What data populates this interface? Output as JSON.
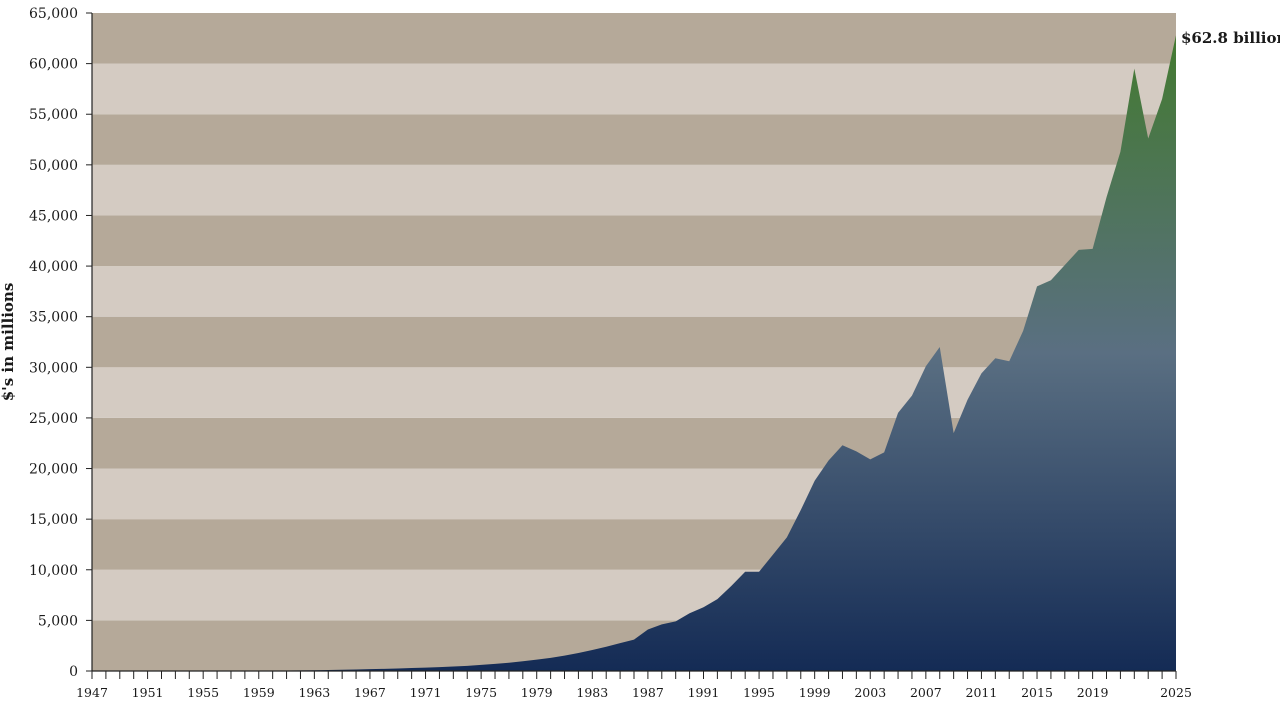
{
  "chart_data": {
    "type": "area",
    "title": "",
    "xlabel": "",
    "ylabel": "$'s in millions",
    "xlim": [
      1947,
      2025
    ],
    "ylim": [
      0,
      65000
    ],
    "y_tick_step": 5000,
    "x_tick_labels": [
      "1947",
      "1951",
      "1955",
      "1959",
      "1963",
      "1967",
      "1971",
      "1975",
      "1979",
      "1983",
      "1987",
      "1991",
      "1995",
      "1999",
      "2003",
      "2007",
      "2011",
      "2015",
      "2019",
      "2025"
    ],
    "end_annotation": "$62.8 billion",
    "grid": "alternating horizontal bands",
    "colors": {
      "band_dark": "#b5a999",
      "band_light": "#d4cbc2",
      "area_bottom": "#142b55",
      "area_middle": "#5a6f82",
      "area_top": "#437a30",
      "axis": "#222222"
    },
    "series": [
      {
        "x": [
          1947,
          1948,
          1949,
          1950,
          1951,
          1952,
          1953,
          1954,
          1955,
          1956,
          1957,
          1958,
          1959,
          1960,
          1961,
          1962,
          1963,
          1964,
          1965,
          1966,
          1967,
          1968,
          1969,
          1970,
          1971,
          1972,
          1973,
          1974,
          1975,
          1976,
          1977,
          1978,
          1979,
          1980,
          1981,
          1982,
          1983,
          1984,
          1985,
          1986,
          1987,
          1988,
          1989,
          1990,
          1991,
          1992,
          1993,
          1994,
          1995,
          1996,
          1997,
          1998,
          1999,
          2000,
          2001,
          2002,
          2003,
          2004,
          2005,
          2006,
          2007,
          2008,
          2009,
          2010,
          2011,
          2012,
          2013,
          2014,
          2015,
          2016,
          2017,
          2018,
          2019,
          2020,
          2021,
          2022,
          2023,
          2024,
          2025
        ],
        "values": [
          2,
          3,
          4,
          5,
          6,
          8,
          10,
          12,
          14,
          17,
          20,
          25,
          30,
          40,
          50,
          65,
          80,
          100,
          125,
          150,
          180,
          210,
          250,
          290,
          330,
          380,
          440,
          510,
          600,
          700,
          820,
          960,
          1120,
          1300,
          1520,
          1780,
          2070,
          2400,
          2750,
          3100,
          4100,
          4600,
          4900,
          5700,
          6300,
          7100,
          8400,
          9800,
          9800,
          11500,
          13200,
          15900,
          18800,
          20800,
          22300,
          21700,
          20900,
          21600,
          25500,
          27200,
          30100,
          32000,
          23500,
          26800,
          29400,
          30900,
          30600,
          33600,
          38000,
          38600,
          40100,
          41600,
          41700,
          46800,
          51300,
          59500,
          52600,
          56500,
          62800
        ]
      }
    ]
  }
}
